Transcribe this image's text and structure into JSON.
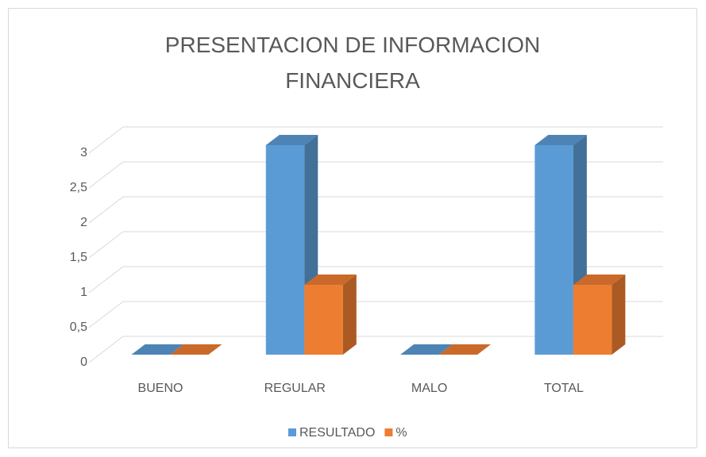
{
  "chart_data": {
    "type": "bar3d",
    "title": "PRESENTACION DE INFORMACION FINANCIERA",
    "categories": [
      "BUENO",
      "REGULAR",
      "MALO",
      "TOTAL"
    ],
    "series": [
      {
        "name": "RESULTADO",
        "color": "#5b9bd5",
        "values": [
          0,
          3,
          0,
          3
        ]
      },
      {
        "name": "%",
        "color": "#ed7d31",
        "values": [
          0,
          1,
          0,
          1
        ]
      }
    ],
    "ylim": [
      0,
      3
    ],
    "yticks": [
      0,
      {
        "value": 0.5,
        "label": "0,5"
      },
      1,
      {
        "value": 1.5,
        "label": "1,5"
      },
      2,
      {
        "value": 2.5,
        "label": "2,5"
      },
      3
    ],
    "grid": true,
    "legend": "bottom"
  }
}
